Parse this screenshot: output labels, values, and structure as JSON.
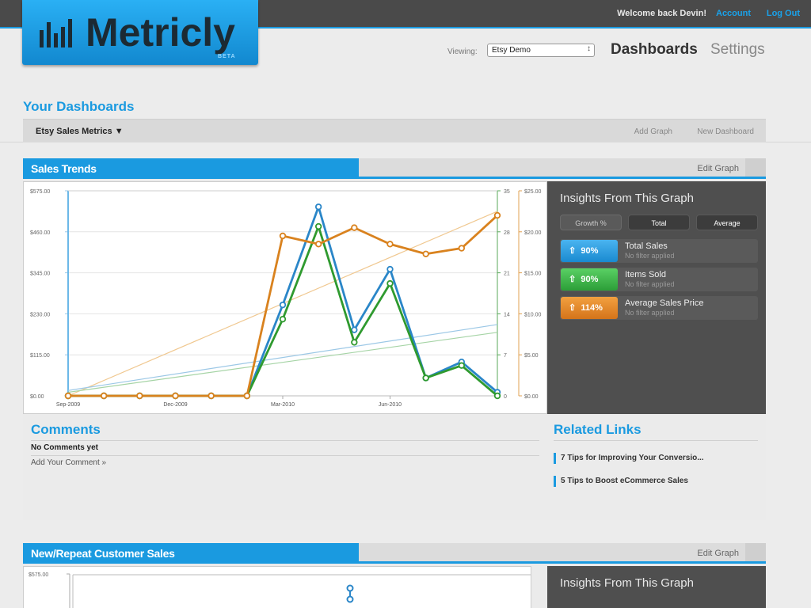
{
  "topbar": {
    "welcome": "Welcome back Devin!",
    "account": "Account",
    "logout": "Log Out"
  },
  "logo": {
    "name": "Metricly",
    "beta": "BETA"
  },
  "header": {
    "viewing_label": "Viewing:",
    "viewing_value": "Etsy Demo",
    "nav_dashboards": "Dashboards",
    "nav_settings": "Settings"
  },
  "dash": {
    "title": "Your Dashboards",
    "current": "Etsy Sales Metrics",
    "add_graph": "Add Graph",
    "new_dashboard": "New Dashboard"
  },
  "panel1": {
    "title": "Sales Trends",
    "edit": "Edit Graph",
    "insights": {
      "title": "Insights From This Graph",
      "buttons": [
        "Growth %",
        "Total",
        "Average"
      ],
      "rows": [
        {
          "badge": "90%",
          "label": "Total Sales",
          "sub": "No filter applied",
          "color": "#2a9de6"
        },
        {
          "badge": "90%",
          "label": "Items Sold",
          "sub": "No filter applied",
          "color": "#3ab54a"
        },
        {
          "badge": "114%",
          "label": "Average Sales Price",
          "sub": "No filter applied",
          "color": "#e6861c"
        }
      ]
    },
    "comments": {
      "title": "Comments",
      "none": "No Comments yet",
      "add": "Add Your Comment »"
    },
    "related": {
      "title": "Related Links",
      "links": [
        "7 Tips for Improving Your Conversio...",
        "5 Tips to Boost eCommerce Sales"
      ]
    }
  },
  "panel2": {
    "title": "New/Repeat Customer Sales",
    "edit": "Edit Graph",
    "insights_title": "Insights From This Graph",
    "first_tick": "$575.00"
  },
  "chart_data": {
    "type": "line",
    "x_tick_labels": [
      "Sep-2009",
      "Dec-2009",
      "Mar-2010",
      "Jun-2010"
    ],
    "left_axis": {
      "ticks": [
        "$575.00",
        "$460.00",
        "$345.00",
        "$230.00",
        "$115.00",
        "$0.00"
      ],
      "ylim": [
        0,
        575
      ]
    },
    "right_axis_count": {
      "ticks": [
        "35",
        "28",
        "21",
        "14",
        "7",
        "0"
      ],
      "ylim": [
        0,
        35
      ]
    },
    "right_axis_price": {
      "ticks": [
        "$25.00",
        "$20.00",
        "$15.00",
        "$10.00",
        "$5.00",
        "$0.00"
      ],
      "ylim": [
        0,
        25
      ]
    },
    "series": [
      {
        "color": "#2a86c8",
        "axis": "left",
        "values": [
          0,
          0,
          0,
          0,
          0,
          0,
          255,
          530,
          185,
          355,
          50,
          95,
          10
        ]
      },
      {
        "color": "#2f9a2f",
        "axis": "left",
        "values": [
          0,
          0,
          0,
          0,
          0,
          0,
          215,
          475,
          150,
          315,
          50,
          85,
          0
        ]
      },
      {
        "color": "#d9821e",
        "axis": "price",
        "values": [
          0,
          0,
          0,
          0,
          0,
          0,
          19.5,
          18.5,
          20.5,
          18.5,
          17.3,
          18,
          22
        ]
      }
    ],
    "trendlines": [
      {
        "color": "#f0c890",
        "start": 0,
        "end": 22.5,
        "axis": "price"
      },
      {
        "color": "#9cc8e6",
        "start": 15,
        "end": 200,
        "axis": "left"
      },
      {
        "color": "#a6d4a6",
        "start": 10,
        "end": 178,
        "axis": "left"
      }
    ]
  }
}
